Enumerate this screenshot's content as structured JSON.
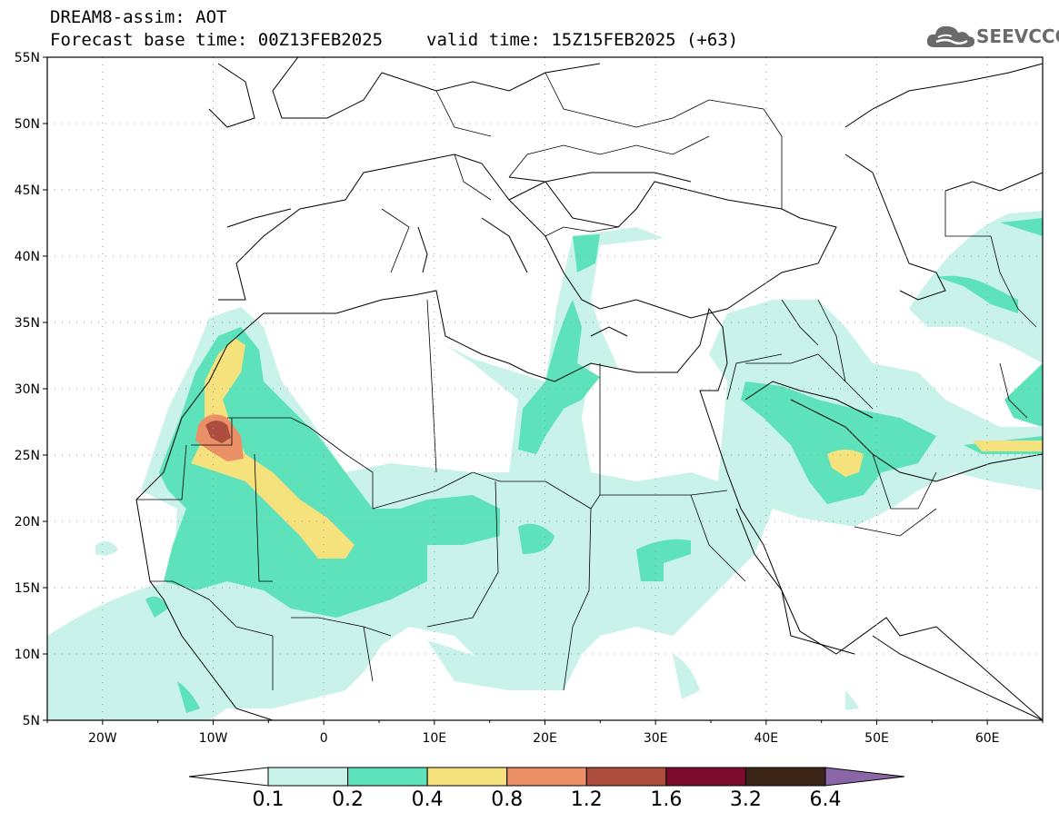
{
  "header": {
    "title": "DREAM8-assim: AOT",
    "base_label": "Forecast base time: 00Z13FEB2025",
    "valid_label": "valid time: 15Z15FEB2025 (+63)"
  },
  "logo": {
    "text": "SEEVCCC",
    "icon": "cloud-icon"
  },
  "map": {
    "lon_range": [
      -25,
      65
    ],
    "lat_range": [
      5,
      55
    ],
    "grid": "dotted",
    "lat_ticks": [
      {
        "value": 55,
        "label": "55N"
      },
      {
        "value": 50,
        "label": "50N"
      },
      {
        "value": 45,
        "label": "45N"
      },
      {
        "value": 40,
        "label": "40N"
      },
      {
        "value": 35,
        "label": "35N"
      },
      {
        "value": 30,
        "label": "30N"
      },
      {
        "value": 25,
        "label": "25N"
      },
      {
        "value": 20,
        "label": "20N"
      },
      {
        "value": 15,
        "label": "15N"
      },
      {
        "value": 10,
        "label": "10N"
      },
      {
        "value": 5,
        "label": "5N"
      }
    ],
    "lon_ticks": [
      {
        "value": -20,
        "label": "20W"
      },
      {
        "value": -10,
        "label": "10W"
      },
      {
        "value": 0,
        "label": "0"
      },
      {
        "value": 10,
        "label": "10E"
      },
      {
        "value": 20,
        "label": "20E"
      },
      {
        "value": 30,
        "label": "30E"
      },
      {
        "value": 40,
        "label": "40E"
      },
      {
        "value": 50,
        "label": "50E"
      },
      {
        "value": 60,
        "label": "60E"
      }
    ]
  },
  "colorbar": {
    "low_color": "#ffffff",
    "high_color": "#8b66a6",
    "bins": [
      "#c8f2ea",
      "#5ee2bb",
      "#f5e27d",
      "#eb8f66",
      "#ad4d3e",
      "#7d0c2e",
      "#3c2516"
    ],
    "labels": [
      "0.1",
      "0.2",
      "0.4",
      "0.8",
      "1.2",
      "1.6",
      "3.2",
      "6.4"
    ]
  }
}
